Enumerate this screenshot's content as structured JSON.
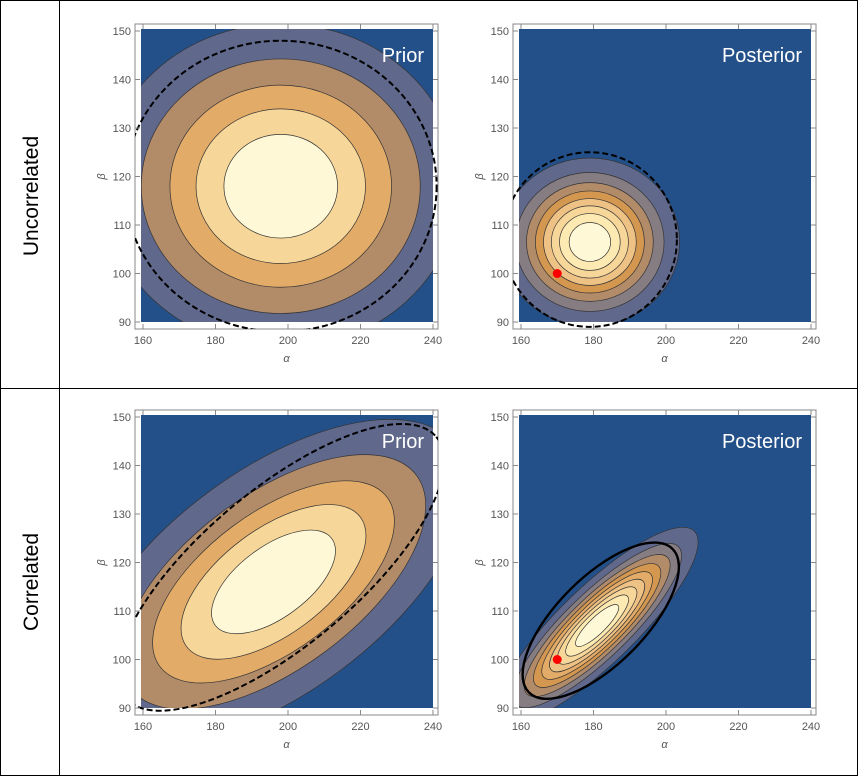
{
  "rows": [
    {
      "label": "Uncorrelated"
    },
    {
      "label": "Correlated"
    }
  ],
  "colors": {
    "background": "#245089",
    "contour_fills": [
      "#60688c",
      "#867d83",
      "#b28b69",
      "#d39750",
      "#e2ab68",
      "#eec185",
      "#f6d699",
      "#fdeab2",
      "#fff8d6"
    ],
    "contour_stroke": "#333333",
    "true_point": "#ff0000",
    "grid_lines": "#000000"
  },
  "chart_data": [
    {
      "type": "contour",
      "title": "Prior",
      "xlabel": "α",
      "ylabel": "β",
      "xlim": [
        158,
        242
      ],
      "ylim": [
        89,
        151
      ],
      "xticks": [
        160,
        180,
        200,
        220,
        240
      ],
      "yticks": [
        90,
        100,
        110,
        120,
        130,
        140,
        150
      ],
      "distribution": {
        "mean_alpha": 198,
        "mean_beta": 118,
        "sd_alpha": 22,
        "sd_beta": 15,
        "corr": 0
      },
      "levels": 5,
      "credible_ellipse": {
        "style": "dashed",
        "center": [
          198,
          118
        ],
        "semi_axis_alpha": 43,
        "semi_axis_beta": 30,
        "angle_deg": 0
      },
      "true_point": null
    },
    {
      "type": "contour",
      "title": "Posterior",
      "xlabel": "α",
      "ylabel": "β",
      "xlim": [
        158,
        242
      ],
      "ylim": [
        89,
        151
      ],
      "xticks": [
        160,
        180,
        200,
        220,
        240
      ],
      "yticks": [
        90,
        100,
        110,
        120,
        130,
        140,
        150
      ],
      "distribution": {
        "mean_alpha": 179,
        "mean_beta": 106.5,
        "sd_alpha": 10,
        "sd_beta": 7,
        "corr": 0
      },
      "levels": 8,
      "credible_ellipse": {
        "style": "dashed",
        "center": [
          179,
          107
        ],
        "semi_axis_alpha": 24,
        "semi_axis_beta": 18,
        "angle_deg": 0
      },
      "true_point": [
        170,
        100
      ]
    },
    {
      "type": "contour",
      "title": "Prior",
      "xlabel": "α",
      "ylabel": "β",
      "xlim": [
        158,
        242
      ],
      "ylim": [
        89,
        151
      ],
      "xticks": [
        160,
        180,
        200,
        220,
        240
      ],
      "yticks": [
        90,
        100,
        110,
        120,
        130,
        140,
        150
      ],
      "distribution": {
        "mean_alpha": 196,
        "mean_beta": 116,
        "sd_alpha": 24,
        "sd_beta": 15,
        "corr": 0.6
      },
      "levels": 5,
      "credible_ellipse": {
        "style": "dashed",
        "center": [
          198,
          119
        ],
        "semi_axis_alpha": 56,
        "semi_axis_beta": 16,
        "angle_deg": 40
      },
      "true_point": null
    },
    {
      "type": "contour",
      "title": "Posterior",
      "xlabel": "α",
      "ylabel": "β",
      "xlim": [
        158,
        242
      ],
      "ylim": [
        89,
        151
      ],
      "xticks": [
        160,
        180,
        200,
        220,
        240
      ],
      "yticks": [
        90,
        100,
        110,
        120,
        130,
        140,
        150
      ],
      "distribution": {
        "mean_alpha": 181,
        "mean_beta": 107,
        "sd_alpha": 11,
        "sd_beta": 8,
        "corr": 0.85
      },
      "levels": 9,
      "credible_ellipse": {
        "style": "solid",
        "center": [
          182,
          108
        ],
        "semi_axis_alpha": 28,
        "semi_axis_beta": 9,
        "angle_deg": 45
      },
      "true_point": [
        170,
        100
      ]
    }
  ]
}
